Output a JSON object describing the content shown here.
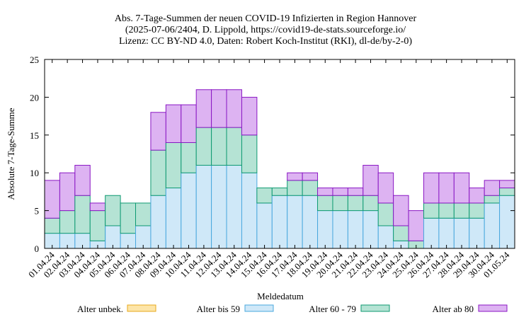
{
  "chart_data": {
    "type": "bar",
    "stacked": true,
    "title": [
      "Abs. 7-Tage-Summen der neuen COVID-19 Infizierten in Region Hannover",
      "(2025-07-06/2404, D. Lippold, https://covid19-de-stats.sourceforge.io/",
      "Lizenz: CC BY-ND 4.0, Daten: Robert Koch-Institut (RKI), dl-de/by-2-0)"
    ],
    "xlabel": "Meldedatum",
    "ylabel": "Absolute 7-Tage-Summe",
    "ylim": [
      0,
      25
    ],
    "yticks": [
      0,
      5,
      10,
      15,
      20,
      25
    ],
    "grid": false,
    "legend_position": "bottom",
    "categories": [
      "01.04.24",
      "02.04.24",
      "03.04.24",
      "04.04.24",
      "05.04.24",
      "06.04.24",
      "07.04.24",
      "08.04.24",
      "09.04.24",
      "10.04.24",
      "11.04.24",
      "12.04.24",
      "13.04.24",
      "14.04.24",
      "15.04.24",
      "16.04.24",
      "17.04.24",
      "18.04.24",
      "19.04.24",
      "20.04.24",
      "21.04.24",
      "22.04.24",
      "23.04.24",
      "24.04.24",
      "25.04.24",
      "26.04.24",
      "27.04.24",
      "28.04.24",
      "29.04.24",
      "30.04.24",
      "01.05.24"
    ],
    "series": [
      {
        "name": "Alter unbek.",
        "color": "#fde5a8",
        "stroke": "#e7a91c",
        "values": [
          0,
          0,
          0,
          0,
          0,
          0,
          0,
          0,
          0,
          0,
          0,
          0,
          0,
          0,
          0,
          0,
          0,
          0,
          0,
          0,
          0,
          0,
          0,
          0,
          0,
          0,
          0,
          0,
          0,
          0,
          0
        ]
      },
      {
        "name": "Alter bis 59",
        "color": "#cfe8f8",
        "stroke": "#4aa8de",
        "values": [
          2,
          2,
          2,
          1,
          3,
          2,
          3,
          7,
          8,
          10,
          11,
          11,
          11,
          10,
          6,
          7,
          7,
          7,
          5,
          5,
          5,
          5,
          3,
          1,
          0,
          4,
          4,
          4,
          4,
          6,
          7
        ]
      },
      {
        "name": "Alter 60 - 79",
        "color": "#b5e3d4",
        "stroke": "#0f9a72",
        "values": [
          2,
          3,
          5,
          4,
          4,
          4,
          3,
          6,
          6,
          4,
          5,
          5,
          5,
          5,
          2,
          1,
          2,
          2,
          2,
          2,
          2,
          2,
          3,
          2,
          1,
          2,
          2,
          2,
          2,
          1,
          1
        ]
      },
      {
        "name": "Alter ab 80",
        "color": "#ddb3f2",
        "stroke": "#8a17c4",
        "values": [
          5,
          5,
          4,
          1,
          0,
          0,
          0,
          5,
          5,
          5,
          5,
          5,
          5,
          5,
          0,
          0,
          1,
          1,
          1,
          1,
          1,
          4,
          4,
          4,
          4,
          4,
          4,
          4,
          2,
          2,
          1
        ]
      }
    ]
  }
}
